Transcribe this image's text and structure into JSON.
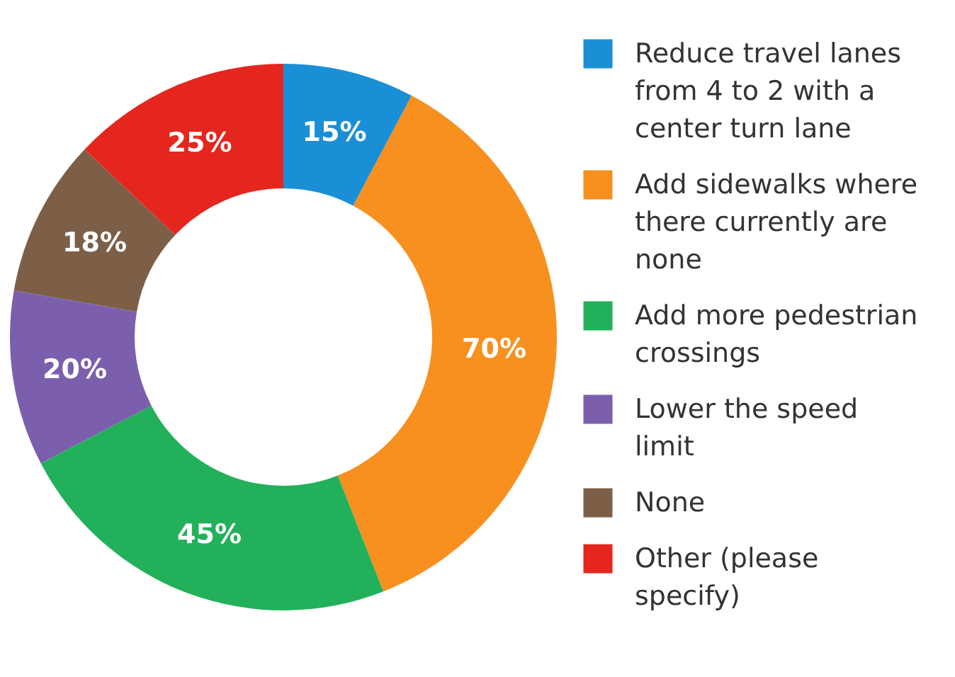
{
  "chart_data": {
    "type": "donut",
    "categories": [
      "Reduce travel lanes from 4 to 2 with a center turn lane",
      "Add sidewalks where there currently are none",
      "Add more pedestrian crossings",
      "Lower the speed limit",
      "None",
      "Other (please specify)"
    ],
    "values": [
      15,
      70,
      45,
      20,
      18,
      25
    ],
    "colors": [
      "#1a8fd6",
      "#f7901e",
      "#22b15a",
      "#7b5fad",
      "#7d5f48",
      "#e5261f"
    ],
    "value_labels": [
      "15%",
      "70%",
      "45%",
      "20%",
      "18%",
      "25%"
    ],
    "legend": "right"
  }
}
